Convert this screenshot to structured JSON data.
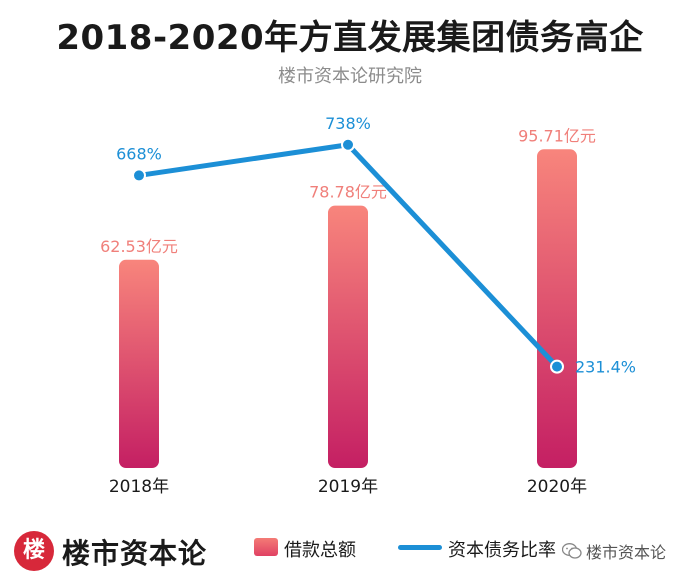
{
  "header": {
    "title": "2018-2020年方直发展集团债务高企",
    "subtitle": "楼市资本论研究院"
  },
  "footer": {
    "logo_badge": "楼",
    "logo_text": "楼市资本论",
    "wechat_text": "楼市资本论"
  },
  "colors": {
    "bar_top": "#f8857c",
    "bar_bottom": "#c41f63",
    "line": "#1c8fd6",
    "bar_label": "#f07f7a",
    "line_label": "#1c8fd6"
  },
  "chart_data": {
    "type": "bar",
    "title": "2018-2020年方直发展集团债务高企",
    "categories": [
      "2018年",
      "2019年",
      "2020年"
    ],
    "series": [
      {
        "name": "借款总额",
        "kind": "bar",
        "values": [
          62.53,
          78.78,
          95.71
        ],
        "labels": [
          "62.53亿元",
          "78.78亿元",
          "95.71亿元"
        ]
      },
      {
        "name": "资本债务比率",
        "kind": "line",
        "values": [
          668,
          738,
          231.4
        ],
        "labels": [
          "668%",
          "738%",
          "231.4%"
        ]
      }
    ],
    "bar_ylim": [
      0,
      100
    ],
    "line_ylim": [
      0,
      1000
    ],
    "legend": "bottom"
  }
}
